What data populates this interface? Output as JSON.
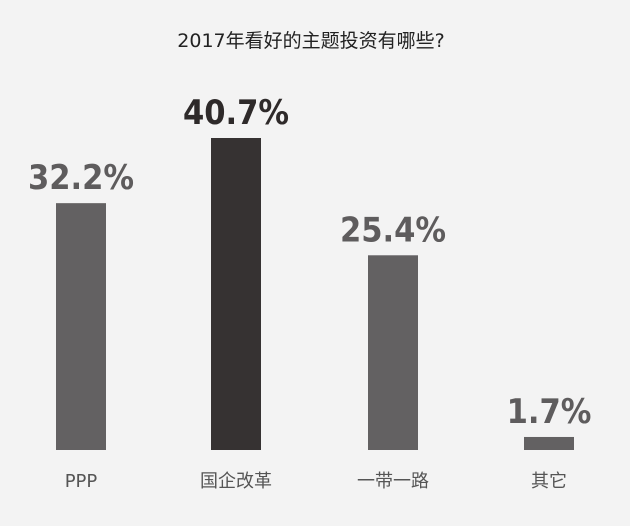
{
  "chart_data": {
    "type": "bar",
    "title": "2017年看好的主题投资有哪些?",
    "categories": [
      "PPP",
      "国企改革",
      "一带一路",
      "其它"
    ],
    "values": [
      32.2,
      40.7,
      25.4,
      1.7
    ],
    "value_labels": [
      "32.2%",
      "40.7%",
      "25.4%",
      "1.7%"
    ],
    "highlight_index": 1,
    "colors": {
      "bar": "#636162",
      "highlight": "#363232",
      "value_text": "#5e5c5d",
      "value_highlight_text": "#2e2a2a"
    },
    "ylim": [
      0,
      40.7
    ],
    "grid": false,
    "legend": "none"
  }
}
